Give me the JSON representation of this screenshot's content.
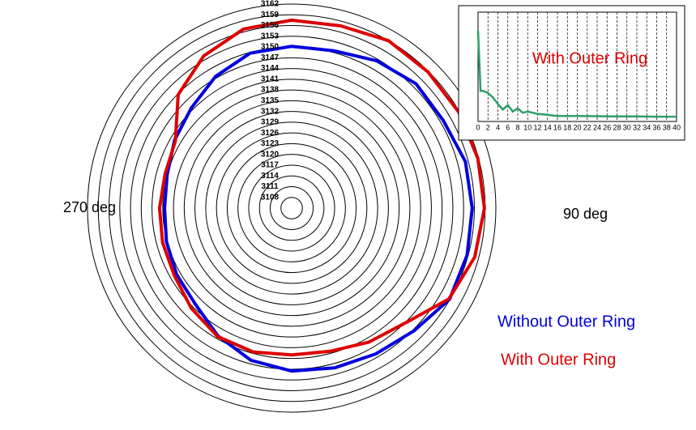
{
  "chart_data": [
    {
      "type": "polar",
      "annotations": [
        "270 deg",
        "90 deg"
      ],
      "theta": [
        0,
        15,
        30,
        45,
        60,
        75,
        90,
        105,
        120,
        135,
        150,
        165,
        180,
        195,
        210,
        225,
        240,
        255,
        270,
        285,
        300,
        315,
        330,
        345
      ],
      "rlim": [
        3105,
        3162
      ],
      "rticks": [
        3108,
        3111,
        3114,
        3117,
        3120,
        3123,
        3126,
        3129,
        3132,
        3135,
        3138,
        3141,
        3144,
        3147,
        3150,
        3153,
        3156,
        3159,
        3162
      ],
      "series": [
        {
          "name": "Without Outer Ring",
          "color": "#0000dd",
          "values": [
            3150.2,
            3150.5,
            3152.5,
            3154.1,
            3153.9,
            3155.2,
            3155.4,
            3155.7,
            3155.9,
            3153.4,
            3152.0,
            3151.2,
            3150.5,
            3149.0,
            3146.2,
            3143.0,
            3142.1,
            3141.2,
            3140.5,
            3141.0,
            3142.8,
            3144.6,
            3147.5,
            3149.8
          ]
        },
        {
          "name": "With Outer Ring",
          "color": "#dd0000",
          "values": [
            3157.5,
            3157.7,
            3159.0,
            3158.8,
            3158.8,
            3158.8,
            3158.8,
            3157.9,
            3155.7,
            3150.2,
            3148.2,
            3146.4,
            3146.0,
            3146.6,
            3146.4,
            3144.6,
            3142.8,
            3142.3,
            3141.9,
            3141.6,
            3142.5,
            3149.8,
            3154.1,
            3156.8
          ]
        }
      ]
    },
    {
      "type": "line",
      "title": "With Outer Ring",
      "x": [
        0,
        0.5,
        1,
        2,
        3,
        4,
        5,
        6,
        7,
        8,
        9,
        10,
        12,
        14,
        16,
        20,
        24,
        28,
        32,
        36,
        40
      ],
      "values": [
        4.15,
        1.4,
        1.4,
        1.3,
        1.1,
        0.8,
        0.55,
        0.75,
        0.45,
        0.6,
        0.4,
        0.45,
        0.35,
        0.3,
        0.25,
        0.25,
        0.24,
        0.23,
        0.23,
        0.22,
        0.22
      ],
      "color": "#2e9e6a",
      "xlim": [
        0,
        40
      ],
      "ylim": [
        0,
        5
      ],
      "xticks": [
        0,
        2,
        4,
        6,
        8,
        10,
        12,
        14,
        16,
        18,
        20,
        22,
        24,
        26,
        28,
        30,
        32,
        34,
        36,
        38,
        40
      ],
      "grid": true
    }
  ]
}
